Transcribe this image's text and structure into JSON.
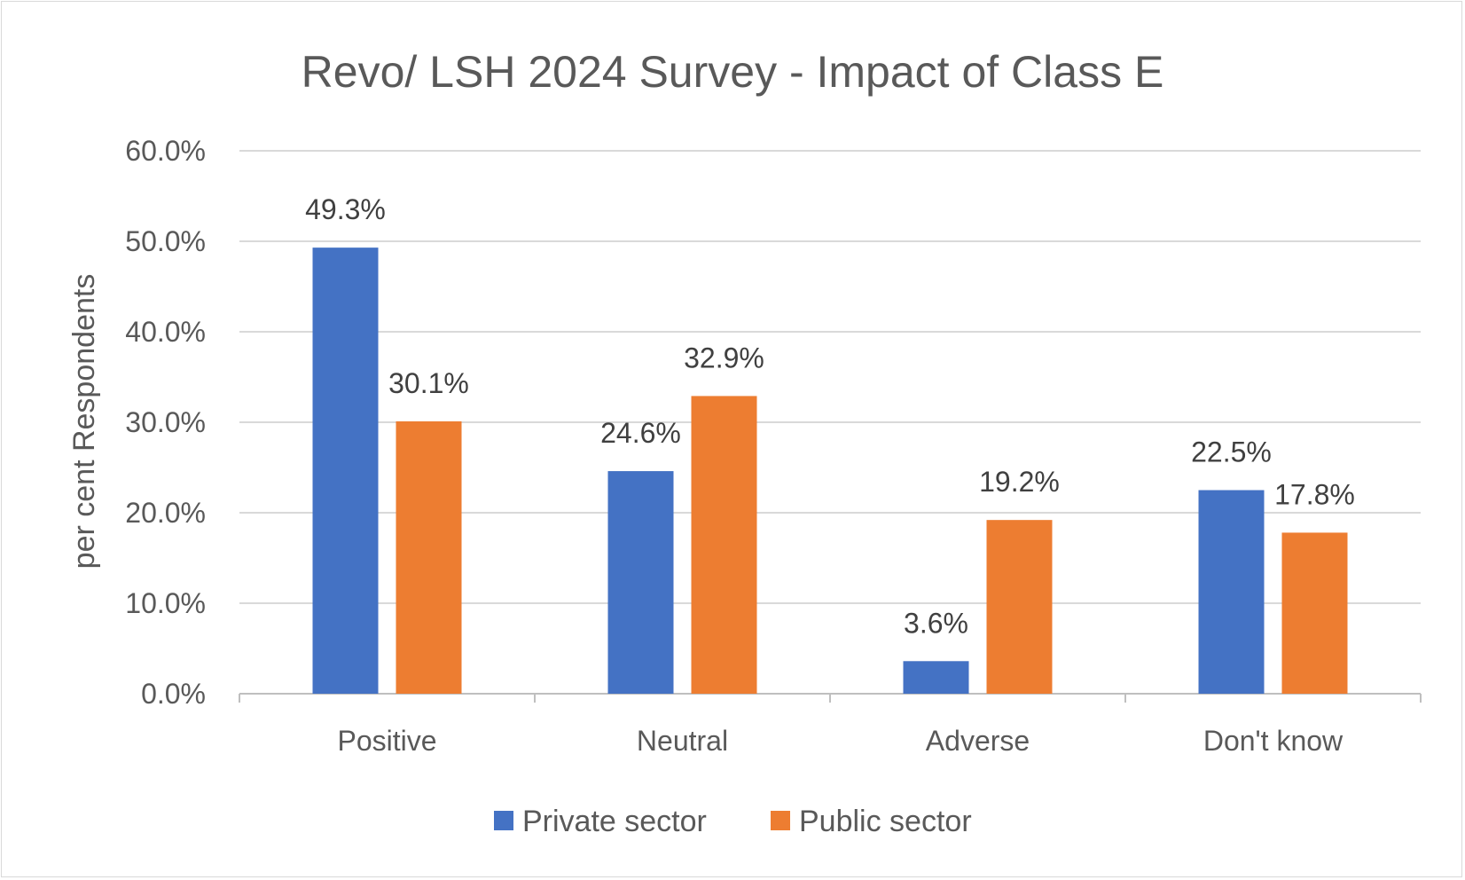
{
  "chart_data": {
    "type": "bar",
    "title": "Revo/ LSH 2024 Survey - Impact of Class E",
    "xlabel": "",
    "ylabel": "per cent Respondents",
    "categories": [
      "Positive",
      "Neutral",
      "Adverse",
      "Don't know"
    ],
    "series": [
      {
        "name": "Private sector",
        "color": "#4472C4",
        "values": [
          49.3,
          24.6,
          3.6,
          22.5
        ],
        "labels": [
          "49.3%",
          "24.6%",
          "3.6%",
          "22.5%"
        ]
      },
      {
        "name": "Public sector",
        "color": "#ED7D31",
        "values": [
          30.1,
          32.9,
          19.2,
          17.8
        ],
        "labels": [
          "30.1%",
          "32.9%",
          "19.2%",
          "17.8%"
        ]
      }
    ],
    "ylim": [
      0,
      60
    ],
    "yticks": [
      0,
      10,
      20,
      30,
      40,
      50,
      60
    ],
    "ytick_labels": [
      "0.0%",
      "10.0%",
      "20.0%",
      "30.0%",
      "40.0%",
      "50.0%",
      "60.0%"
    ],
    "grid": true,
    "legend_position": "bottom"
  }
}
